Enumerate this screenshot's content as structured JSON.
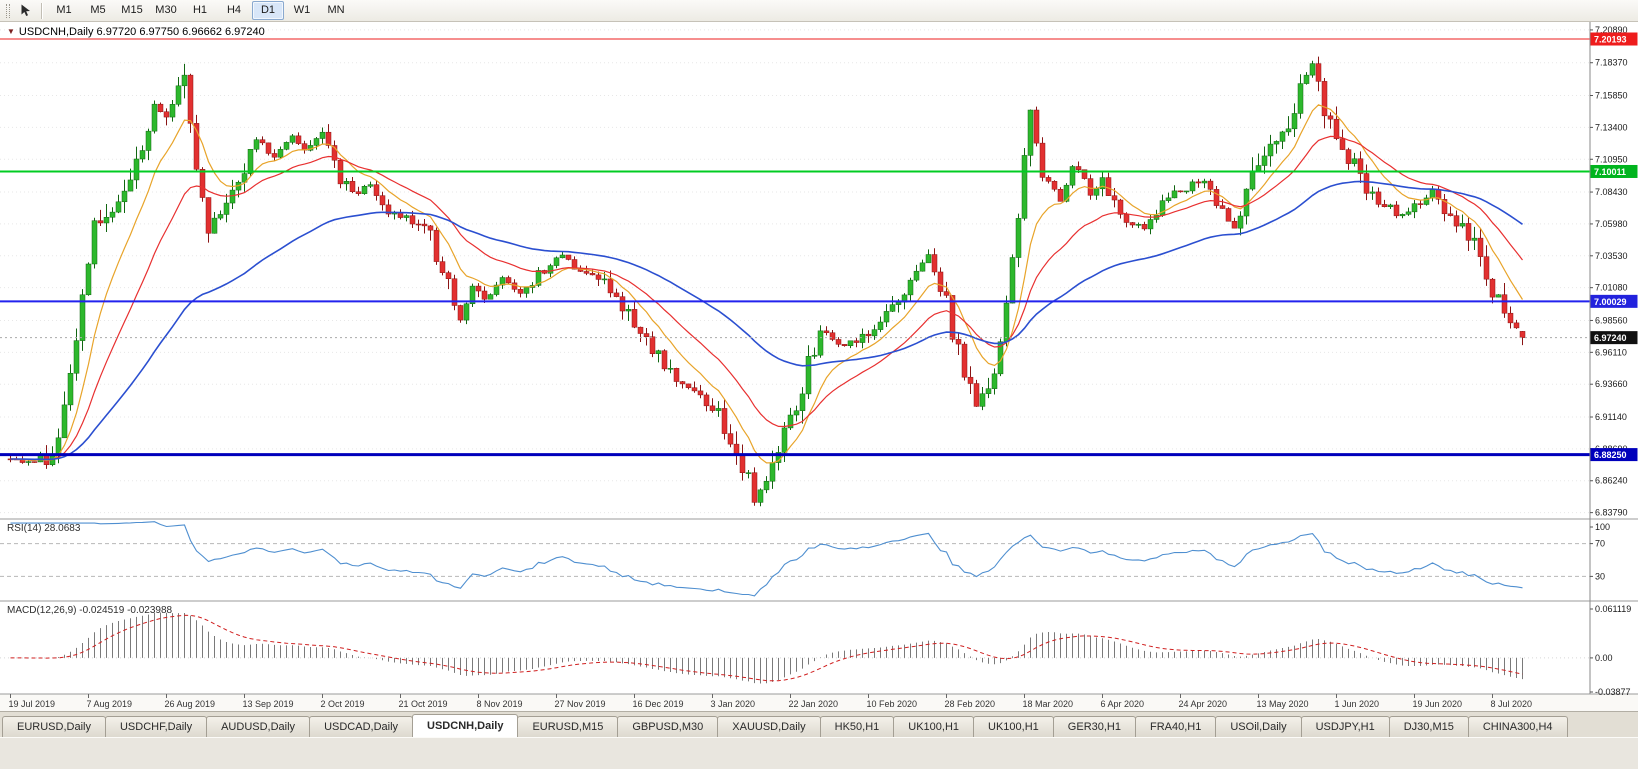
{
  "toolbar": {
    "timeframes": [
      {
        "label": "M1",
        "active": false
      },
      {
        "label": "M5",
        "active": false
      },
      {
        "label": "M15",
        "active": false
      },
      {
        "label": "M30",
        "active": false
      },
      {
        "label": "H1",
        "active": false
      },
      {
        "label": "H4",
        "active": false
      },
      {
        "label": "D1",
        "active": true
      },
      {
        "label": "W1",
        "active": false
      },
      {
        "label": "MN",
        "active": false
      }
    ]
  },
  "chart_data": {
    "type": "candlestick",
    "symbol": "USDCNH",
    "timeframe": "Daily",
    "title": "USDCNH,Daily 6.97720 6.97750 6.96662 6.97240",
    "ohlc": {
      "open": 6.9772,
      "high": 6.9775,
      "low": 6.96662,
      "close": 6.9724
    },
    "y_axis": {
      "min": 6.833,
      "max": 7.215,
      "ticks": [
        "7.20890",
        "7.18370",
        "7.15850",
        "7.13400",
        "7.10950",
        "7.08430",
        "7.05980",
        "7.03530",
        "7.01080",
        "6.98560",
        "6.96110",
        "6.93660",
        "6.91140",
        "6.88690",
        "6.86240",
        "6.83790"
      ]
    },
    "x_axis_labels": [
      "19 Jul 2019",
      "7 Aug 2019",
      "26 Aug 2019",
      "13 Sep 2019",
      "2 Oct 2019",
      "21 Oct 2019",
      "8 Nov 2019",
      "27 Nov 2019",
      "16 Dec 2019",
      "3 Jan 2020",
      "22 Jan 2020",
      "10 Feb 2020",
      "28 Feb 2020",
      "18 Mar 2020",
      "6 Apr 2020",
      "24 Apr 2020",
      "13 May 2020",
      "1 Jun 2020",
      "19 Jun 2020",
      "8 Jul 2020"
    ],
    "num_candles": 253,
    "price_path_anchors": [
      [
        0,
        6.878
      ],
      [
        6,
        6.88
      ],
      [
        8,
        6.895
      ],
      [
        10,
        6.945
      ],
      [
        12,
        7.005
      ],
      [
        14,
        7.055
      ],
      [
        16,
        7.062
      ],
      [
        18,
        7.078
      ],
      [
        20,
        7.095
      ],
      [
        22,
        7.125
      ],
      [
        24,
        7.148
      ],
      [
        26,
        7.14
      ],
      [
        28,
        7.162
      ],
      [
        29,
        7.172
      ],
      [
        31,
        7.108
      ],
      [
        33,
        7.058
      ],
      [
        35,
        7.065
      ],
      [
        37,
        7.088
      ],
      [
        39,
        7.105
      ],
      [
        41,
        7.122
      ],
      [
        44,
        7.112
      ],
      [
        47,
        7.128
      ],
      [
        49,
        7.115
      ],
      [
        52,
        7.126
      ],
      [
        55,
        7.096
      ],
      [
        57,
        7.082
      ],
      [
        60,
        7.092
      ],
      [
        63,
        7.07
      ],
      [
        66,
        7.066
      ],
      [
        69,
        7.06
      ],
      [
        72,
        7.026
      ],
      [
        75,
        6.987
      ],
      [
        77,
        7.012
      ],
      [
        79,
        7.0
      ],
      [
        82,
        7.016
      ],
      [
        85,
        7.006
      ],
      [
        89,
        7.026
      ],
      [
        92,
        7.036
      ],
      [
        94,
        7.026
      ],
      [
        99,
        7.016
      ],
      [
        102,
        6.998
      ],
      [
        104,
        6.98
      ],
      [
        107,
        6.966
      ],
      [
        109,
        6.95
      ],
      [
        112,
        6.936
      ],
      [
        115,
        6.928
      ],
      [
        117,
        6.922
      ],
      [
        120,
        6.898
      ],
      [
        123,
        6.866
      ],
      [
        124,
        6.845
      ],
      [
        126,
        6.86
      ],
      [
        129,
        6.896
      ],
      [
        131,
        6.92
      ],
      [
        133,
        6.956
      ],
      [
        135,
        6.976
      ],
      [
        139,
        6.966
      ],
      [
        143,
        6.976
      ],
      [
        147,
        6.996
      ],
      [
        150,
        7.016
      ],
      [
        153,
        7.038
      ],
      [
        156,
        6.996
      ],
      [
        159,
        6.946
      ],
      [
        161,
        6.916
      ],
      [
        164,
        6.946
      ],
      [
        166,
        6.996
      ],
      [
        168,
        7.066
      ],
      [
        170,
        7.146
      ],
      [
        172,
        7.096
      ],
      [
        175,
        7.076
      ],
      [
        177,
        7.106
      ],
      [
        180,
        7.086
      ],
      [
        182,
        7.091
      ],
      [
        185,
        7.066
      ],
      [
        189,
        7.056
      ],
      [
        192,
        7.076
      ],
      [
        195,
        7.086
      ],
      [
        199,
        7.096
      ],
      [
        201,
        7.076
      ],
      [
        204,
        7.056
      ],
      [
        206,
        7.086
      ],
      [
        208,
        7.098
      ],
      [
        210,
        7.116
      ],
      [
        213,
        7.136
      ],
      [
        215,
        7.164
      ],
      [
        217,
        7.186
      ],
      [
        219,
        7.146
      ],
      [
        221,
        7.126
      ],
      [
        224,
        7.106
      ],
      [
        226,
        7.086
      ],
      [
        229,
        7.076
      ],
      [
        231,
        7.066
      ],
      [
        234,
        7.071
      ],
      [
        237,
        7.086
      ],
      [
        240,
        7.066
      ],
      [
        242,
        7.056
      ],
      [
        245,
        7.036
      ],
      [
        247,
        7.006
      ],
      [
        250,
        6.988
      ],
      [
        251,
        6.976
      ],
      [
        252,
        6.9724
      ]
    ],
    "last_candle": {
      "open": 6.9772,
      "high": 6.9775,
      "low": 6.96662,
      "close": 6.9724
    },
    "horizontal_lines": [
      {
        "name": "resistance-red",
        "value": 7.20193,
        "label": "7.20193",
        "color": "#ee1c1c",
        "width": 1,
        "tag_bg": "#ee1c1c",
        "tag_fg": "#ffffff"
      },
      {
        "name": "resistance-green",
        "value": 7.10011,
        "label": "7.10011",
        "color": "#00cc22",
        "width": 2,
        "tag_bg": "#00b41e",
        "tag_fg": "#ffffff"
      },
      {
        "name": "support-blue",
        "value": 7.00029,
        "label": "7.00029",
        "color": "#2222ee",
        "width": 2,
        "tag_bg": "#2222dd",
        "tag_fg": "#ffffff"
      },
      {
        "name": "support-navy",
        "value": 6.8825,
        "label": "6.88250",
        "color": "#0000bb",
        "width": 3,
        "tag_bg": "#0000bb",
        "tag_fg": "#ffffff"
      }
    ],
    "current_price": {
      "value": 6.9724,
      "label": "6.97240",
      "tag_bg": "#111111",
      "tag_fg": "#ffffff",
      "line_color": "#aaaaaa"
    },
    "moving_averages": [
      {
        "name": "ma-fast",
        "period": 9,
        "color": "#e8a42a"
      },
      {
        "name": "ma-mid",
        "period": 21,
        "color": "#e83030"
      },
      {
        "name": "ma-slow",
        "period": 55,
        "color": "#2b4fd0"
      }
    ],
    "candle_colors": {
      "up_fill": "#2db82d",
      "up_stroke": "#116611",
      "down_fill": "#e23030",
      "down_stroke": "#8a1414"
    },
    "indicators": {
      "rsi": {
        "label": "RSI(14) 28.0683",
        "period": 14,
        "current": 28.0683,
        "levels": [
          70,
          30
        ],
        "axis_labels": [
          "100",
          "70",
          "30"
        ],
        "line_color": "#4f8fd0"
      },
      "macd": {
        "label": "MACD(12,26,9) -0.024519 -0.023988",
        "fast": 12,
        "slow": 26,
        "signal": 9,
        "macd_value": -0.024519,
        "signal_value": -0.023988,
        "axis_max": 0.061119,
        "axis_min": -0.03877,
        "axis_labels": [
          "0.061119",
          "0.00",
          "-0.03877"
        ],
        "histogram_color": "#7a7a7a",
        "signal_color": "#d02020"
      }
    }
  },
  "tabs": [
    {
      "label": "EURUSD,Daily",
      "active": false
    },
    {
      "label": "USDCHF,Daily",
      "active": false
    },
    {
      "label": "AUDUSD,Daily",
      "active": false
    },
    {
      "label": "USDCAD,Daily",
      "active": false
    },
    {
      "label": "USDCNH,Daily",
      "active": true
    },
    {
      "label": "EURUSD,M15",
      "active": false
    },
    {
      "label": "GBPUSD,M30",
      "active": false
    },
    {
      "label": "XAUUSD,Daily",
      "active": false
    },
    {
      "label": "HK50,H1",
      "active": false
    },
    {
      "label": "UK100,H1",
      "active": false
    },
    {
      "label": "UK100,H1",
      "active": false
    },
    {
      "label": "GER30,H1",
      "active": false
    },
    {
      "label": "FRA40,H1",
      "active": false
    },
    {
      "label": "USOil,Daily",
      "active": false
    },
    {
      "label": "USDJPY,H1",
      "active": false
    },
    {
      "label": "DJ30,M15",
      "active": false
    },
    {
      "label": "CHINA300,H4",
      "active": false
    }
  ]
}
